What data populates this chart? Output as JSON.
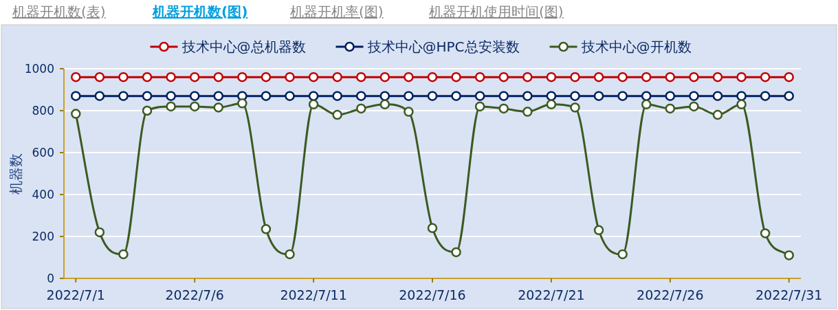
{
  "chart_data": {
    "type": "line",
    "ylabel": "机器数",
    "annotations": [
      "机器开机数(表)",
      "机器开机数(图)",
      "机器开机率(图)",
      "机器开机使用时间(图)"
    ],
    "x": [
      "2022-07-01",
      "2022-07-02",
      "2022-07-03",
      "2022-07-04",
      "2022-07-05",
      "2022-07-06",
      "2022-07-07",
      "2022-07-08",
      "2022-07-09",
      "2022-07-10",
      "2022-07-11",
      "2022-07-12",
      "2022-07-13",
      "2022-07-14",
      "2022-07-15",
      "2022-07-16",
      "2022-07-17",
      "2022-07-18",
      "2022-07-19",
      "2022-07-20",
      "2022-07-21",
      "2022-07-22",
      "2022-07-23",
      "2022-07-24",
      "2022-07-25",
      "2022-07-26",
      "2022-07-27",
      "2022-07-28",
      "2022-07-29",
      "2022-07-30",
      "2022-07-31"
    ],
    "series": [
      {
        "name": "技术中心@总机器数",
        "color": "#c00000",
        "values": [
          960,
          960,
          960,
          960,
          960,
          960,
          960,
          960,
          960,
          960,
          960,
          960,
          960,
          960,
          960,
          960,
          960,
          960,
          960,
          960,
          960,
          960,
          960,
          960,
          960,
          960,
          960,
          960,
          960,
          960,
          960
        ]
      },
      {
        "name": "技术中心@HPC总安装数",
        "color": "#002060",
        "values": [
          870,
          870,
          870,
          870,
          870,
          870,
          870,
          870,
          870,
          870,
          870,
          870,
          870,
          870,
          870,
          870,
          870,
          870,
          870,
          870,
          870,
          870,
          870,
          870,
          870,
          870,
          870,
          870,
          870,
          870,
          870
        ]
      },
      {
        "name": "技术中心@开机数",
        "color": "#3b5a22",
        "values": [
          785,
          220,
          115,
          800,
          820,
          820,
          815,
          835,
          235,
          115,
          830,
          780,
          810,
          830,
          795,
          240,
          125,
          820,
          810,
          795,
          830,
          815,
          230,
          115,
          830,
          810,
          820,
          780,
          830,
          215,
          110
        ]
      }
    ],
    "xlim": [
      "2022-06-30T12:00",
      "2022-07-31T12:00"
    ],
    "xticks": [
      {
        "value": "2022-07-01",
        "label": "2022/7/1"
      },
      {
        "value": "2022-07-06",
        "label": "2022/7/6"
      },
      {
        "value": "2022-07-11",
        "label": "2022/7/11"
      },
      {
        "value": "2022-07-16",
        "label": "2022/7/16"
      },
      {
        "value": "2022-07-21",
        "label": "2022/7/21"
      },
      {
        "value": "2022-07-26",
        "label": "2022/7/26"
      },
      {
        "value": "2022-07-31",
        "label": "2022/7/31"
      }
    ],
    "ylim": [
      0,
      1000
    ],
    "yticks": [
      0,
      200,
      400,
      600,
      800,
      1000
    ],
    "grid": "y",
    "legend": "top",
    "marker": "circle",
    "line_style": "solid"
  }
}
